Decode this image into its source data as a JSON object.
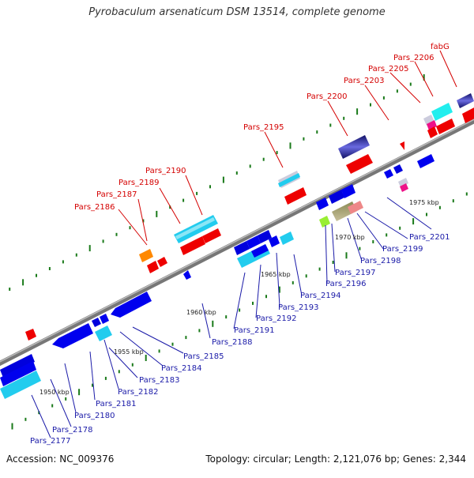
{
  "title": "Pyrobaculum arsenaticum DSM 13514, complete genome",
  "footer": {
    "accession": "Accession: NC_009376",
    "topology": "Topology: circular; Length: 2,121,076 bp; Genes: 2,344"
  },
  "kbp_ticks": [
    "1950 kbp",
    "1955 kbp",
    "1960 kbp",
    "1965 kbp",
    "1970 kbp",
    "1975 kbp"
  ],
  "labels_forward": [
    "Pars_2186",
    "Pars_2187",
    "Pars_2189",
    "Pars_2190",
    "Pars_2195",
    "Pars_2200",
    "Pars_2203",
    "Pars_2205",
    "Pars_2206",
    "fabG"
  ],
  "labels_reverse": [
    "Pars_2177",
    "Pars_2178",
    "Pars_2180",
    "Pars_2181",
    "Pars_2182",
    "Pars_2183",
    "Pars_2184",
    "Pars_2185",
    "Pars_2188",
    "Pars_2191",
    "Pars_2192",
    "Pars_2193",
    "Pars_2194",
    "Pars_2196",
    "Pars_2197",
    "Pars_2198",
    "Pars_2199",
    "Pars_2201"
  ],
  "colors": {
    "forward_label": "#d40000",
    "reverse_label": "#1a1aa8",
    "gene_red": "#ee0000",
    "gene_blue": "#0000dd",
    "gene_cyan": "#22ccee",
    "gene_navy": "#1a1a6e",
    "gene_orange": "#ff8800",
    "gene_lime": "#99ee33",
    "gene_olive": "#b8b080",
    "gene_pink": "#ee8888",
    "tick_green": "#1a7a1a",
    "backbone": "#888888"
  }
}
